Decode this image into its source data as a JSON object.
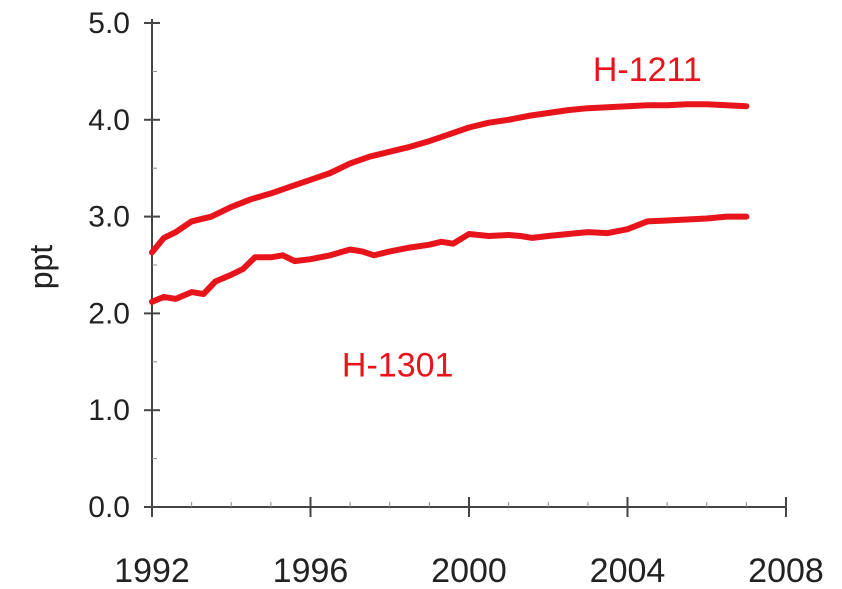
{
  "chart_data": {
    "type": "line",
    "title": "",
    "xlabel": "",
    "ylabel": "ppt",
    "xlim": [
      1992,
      2008
    ],
    "ylim": [
      0,
      5
    ],
    "xticks": [
      1992,
      1996,
      2000,
      2004,
      2008
    ],
    "xtick_labels": [
      "1992",
      "1996",
      "2000",
      "2004",
      "2008"
    ],
    "yticks": [
      0,
      1,
      2,
      3,
      4,
      5
    ],
    "ytick_labels": [
      "0.0",
      "1.0",
      "2.0",
      "3.0",
      "4.0",
      "5.0"
    ],
    "grid": false,
    "legend": "none",
    "series": [
      {
        "name": "H-1211",
        "color": "#e8141c",
        "x": [
          1992.0,
          1992.3,
          1992.6,
          1993.0,
          1993.5,
          1994.0,
          1994.5,
          1995.0,
          1995.5,
          1996.0,
          1996.5,
          1997.0,
          1997.5,
          1998.0,
          1998.5,
          1999.0,
          1999.5,
          2000.0,
          2000.5,
          2001.0,
          2001.5,
          2002.0,
          2002.5,
          2003.0,
          2003.5,
          2004.0,
          2004.5,
          2005.0,
          2005.5,
          2006.0,
          2006.5,
          2007.0
        ],
        "y": [
          2.63,
          2.78,
          2.84,
          2.95,
          3.0,
          3.1,
          3.18,
          3.24,
          3.31,
          3.38,
          3.45,
          3.55,
          3.62,
          3.67,
          3.72,
          3.78,
          3.85,
          3.92,
          3.97,
          4.0,
          4.04,
          4.07,
          4.1,
          4.12,
          4.13,
          4.14,
          4.15,
          4.15,
          4.16,
          4.16,
          4.15,
          4.14
        ]
      },
      {
        "name": "H-1301",
        "color": "#e8141c",
        "x": [
          1992.0,
          1992.3,
          1992.6,
          1993.0,
          1993.3,
          1993.6,
          1994.0,
          1994.3,
          1994.6,
          1995.0,
          1995.3,
          1995.6,
          1996.0,
          1996.5,
          1997.0,
          1997.3,
          1997.6,
          1998.0,
          1998.5,
          1999.0,
          1999.3,
          1999.6,
          2000.0,
          2000.5,
          2001.0,
          2001.3,
          2001.6,
          2002.0,
          2002.5,
          2003.0,
          2003.5,
          2004.0,
          2004.5,
          2005.0,
          2005.5,
          2006.0,
          2006.5,
          2007.0
        ],
        "y": [
          2.12,
          2.17,
          2.15,
          2.22,
          2.2,
          2.33,
          2.4,
          2.46,
          2.58,
          2.58,
          2.6,
          2.54,
          2.56,
          2.6,
          2.66,
          2.64,
          2.6,
          2.64,
          2.68,
          2.71,
          2.74,
          2.72,
          2.82,
          2.8,
          2.81,
          2.8,
          2.78,
          2.8,
          2.82,
          2.84,
          2.83,
          2.87,
          2.95,
          2.96,
          2.97,
          2.98,
          3.0,
          3.0
        ]
      }
    ],
    "annotations": [
      {
        "text": "H-1211",
        "x": 2004.5,
        "y": 4.4,
        "color": "#e8141c"
      },
      {
        "text": "H-1301",
        "x": 1998.2,
        "y": 1.35,
        "color": "#e8141c"
      }
    ]
  }
}
